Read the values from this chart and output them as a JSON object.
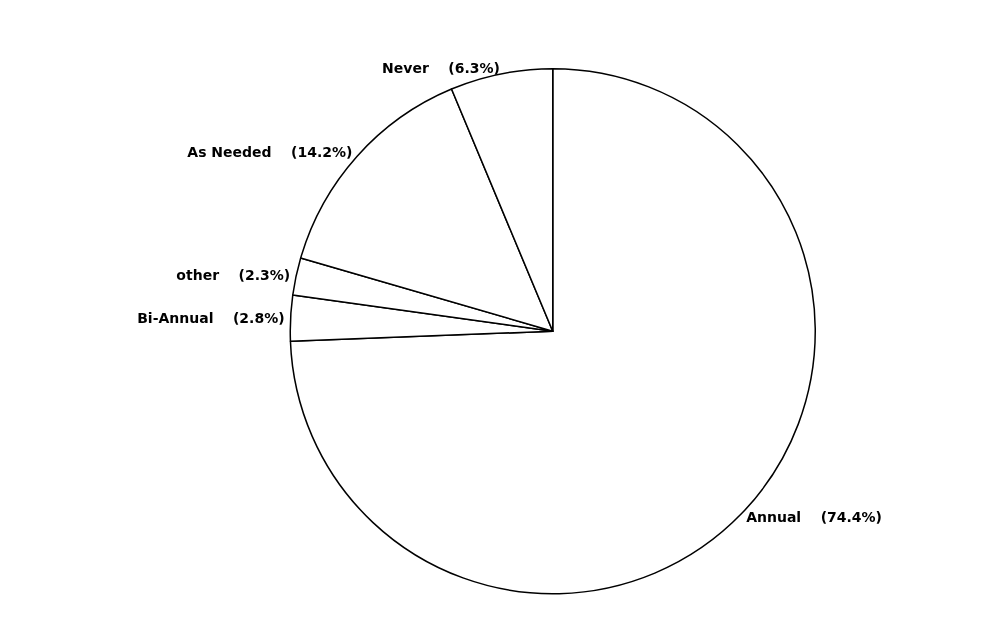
{
  "chart_data": {
    "type": "pie",
    "categories": [
      "Annual",
      "Bi-Annual",
      "other",
      "As Needed",
      "Never"
    ],
    "values": [
      74.4,
      2.8,
      2.3,
      14.2,
      6.3
    ],
    "value_labels": [
      "(74.4%)",
      "(2.8%)",
      "(2.3%)",
      "(14.2%)",
      "(6.3%)"
    ],
    "colors": [
      "#ffffff",
      "#ffffff",
      "#ffffff",
      "#ffffff",
      "#ffffff"
    ]
  }
}
